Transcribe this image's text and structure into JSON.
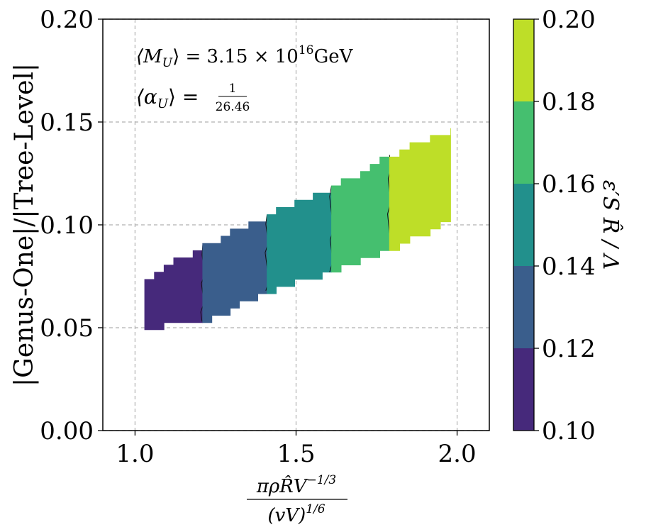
{
  "chart_data": {
    "type": "heatmap",
    "subtype": "filled-contour",
    "title": "",
    "xlabel": "πρR̂V^(−1/3) / (vV)^(1/6)",
    "ylabel": "|Genus-One|/|Tree-Level|",
    "xlim": [
      0.9,
      2.1
    ],
    "ylim": [
      0.0,
      0.2
    ],
    "xticks": [
      1.0,
      1.5,
      2.0
    ],
    "yticks": [
      0.0,
      0.05,
      0.1,
      0.15,
      0.2
    ],
    "x_tick_labels": [
      "1.0",
      "1.5",
      "2.0"
    ],
    "y_tick_labels": [
      "0.00",
      "0.05",
      "0.10",
      "0.15",
      "0.20"
    ],
    "grid": true,
    "annotations": {
      "mass_lhs": "⟨M",
      "mass_sub": "U",
      "mass_eq": "⟩ = 3.15 × 10",
      "mass_exp": "16",
      "mass_unit": "GeV",
      "alpha_lhs": "⟨α",
      "alpha_sub": "U",
      "alpha_eq": "⟩ =",
      "alpha_num": "1",
      "alpha_den": "26.46"
    },
    "colorbar": {
      "label": "ε′S R̂ / Λ",
      "range": [
        0.1,
        0.2
      ],
      "tick_labels": [
        "0.10",
        "0.12",
        "0.14",
        "0.16",
        "0.18",
        "0.20"
      ],
      "levels": [
        0.1,
        0.12,
        0.14,
        0.16,
        0.18,
        0.2
      ],
      "colors": [
        "#46297b",
        "#3a5e8c",
        "#22908c",
        "#45bf6f",
        "#bede28"
      ]
    },
    "contour_bands": [
      {
        "range": [
          0.1,
          0.12
        ],
        "color": "#46297b",
        "x": [
          1.03,
          1.21
        ],
        "y_bottom": [
          0.05,
          0.053
        ],
        "y_top": [
          0.075,
          0.09
        ]
      },
      {
        "range": [
          0.12,
          0.14
        ],
        "color": "#3a5e8c",
        "x": [
          1.21,
          1.41
        ],
        "y_bottom": [
          0.053,
          0.068
        ],
        "y_top": [
          0.09,
          0.105
        ]
      },
      {
        "range": [
          0.14,
          0.16
        ],
        "color": "#22908c",
        "x": [
          1.41,
          1.61
        ],
        "y_bottom": [
          0.068,
          0.077
        ],
        "y_top": [
          0.105,
          0.119
        ]
      },
      {
        "range": [
          0.16,
          0.18
        ],
        "color": "#45bf6f",
        "x": [
          1.61,
          1.79
        ],
        "y_bottom": [
          0.077,
          0.088
        ],
        "y_top": [
          0.119,
          0.134
        ]
      },
      {
        "range": [
          0.18,
          0.2
        ],
        "color": "#bede28",
        "x": [
          1.79,
          1.98
        ],
        "y_bottom": [
          0.088,
          0.103
        ],
        "y_top": [
          0.134,
          0.147
        ]
      }
    ]
  }
}
